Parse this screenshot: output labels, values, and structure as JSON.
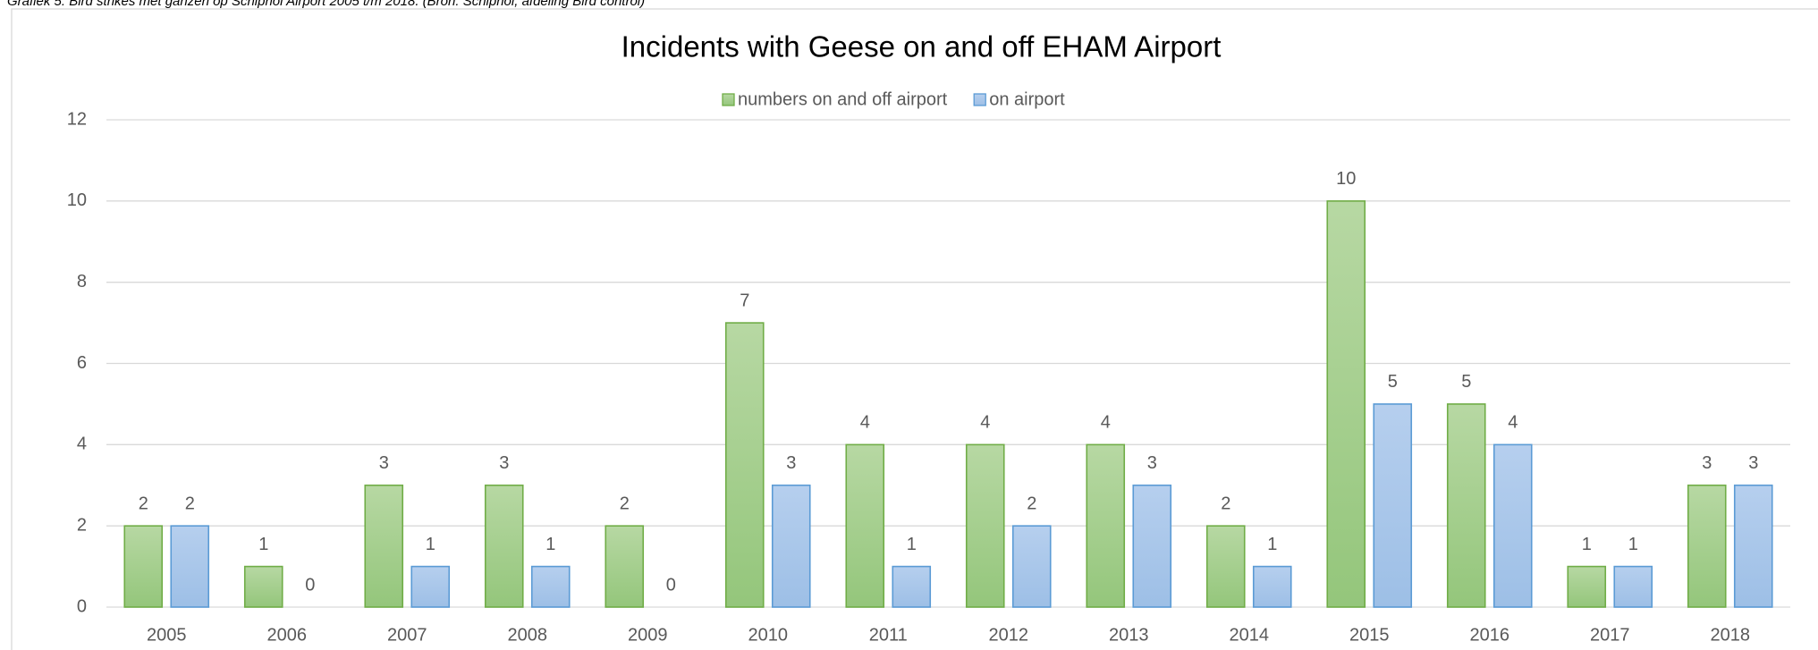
{
  "caption": "Grafiek 5: Bird strikes met ganzen op Schiphol Airport 2005 t/m 2018. (Bron: Schiphol, afdeling Bird control)",
  "chart_data": {
    "type": "bar",
    "title": "Incidents with Geese on and off EHAM Airport",
    "categories": [
      "2005",
      "2006",
      "2007",
      "2008",
      "2009",
      "2010",
      "2011",
      "2012",
      "2013",
      "2014",
      "2015",
      "2016",
      "2017",
      "2018"
    ],
    "series": [
      {
        "name": "numbers on and off airport",
        "color": "#70ad47",
        "values": [
          2,
          1,
          3,
          3,
          2,
          7,
          4,
          4,
          4,
          2,
          10,
          5,
          1,
          3
        ]
      },
      {
        "name": "on airport",
        "color": "#5b9bd5",
        "values": [
          2,
          0,
          1,
          1,
          0,
          3,
          1,
          2,
          3,
          1,
          5,
          4,
          1,
          3
        ]
      }
    ],
    "ylim": [
      0,
      12
    ],
    "yticks": [
      0,
      2,
      4,
      6,
      8,
      10,
      12
    ],
    "grid": true,
    "legend": "top"
  }
}
